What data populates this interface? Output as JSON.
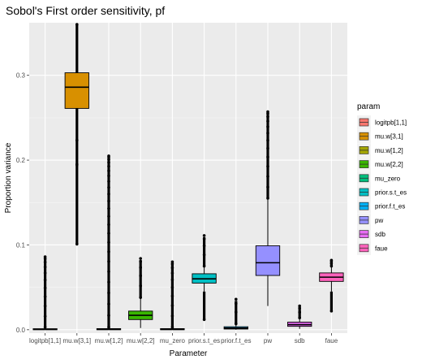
{
  "chart_data": {
    "type": "box",
    "title": "Sobol's First order sensitivity,  pf",
    "xlabel": "Parameter",
    "ylabel": "Proportion variance",
    "ylim": [
      -0.004,
      0.362
    ],
    "yticks": [
      0.0,
      0.1,
      0.2,
      0.3
    ],
    "ytick_labels": [
      "0.0",
      "0.1",
      "0.2",
      "0.3"
    ],
    "grid": true,
    "legend_title": "param",
    "legend_position": "right",
    "categories": [
      "logitpb[1,1]",
      "mu.w[3,1]",
      "mu.w[1,2]",
      "mu.w[2,2]",
      "mu_zero",
      "prior.s.t_es",
      "prior.f.t_es",
      "pw",
      "sdb",
      "faue"
    ],
    "tick_labels": [
      "logitpb[1,1]",
      "mu.w[3,1]",
      "mu.w[1,2]",
      "mu.w[2,2]",
      "mu_zero",
      "prior.s.t_es",
      "prior.f.t_es",
      "pw",
      "sdb",
      "faue"
    ],
    "series": [
      {
        "name": "logitpb[1,1]",
        "color": "#F8766D",
        "min": 0.0,
        "q1": 0.0,
        "median": 0.0005,
        "q3": 0.0012,
        "max": 0.003,
        "outlier_max": 0.086
      },
      {
        "name": "mu.w[3,1]",
        "color": "#D89000",
        "min": 0.195,
        "q1": 0.261,
        "median": 0.286,
        "q3": 0.303,
        "max": 0.36,
        "outlier_min": 0.101,
        "outlier_max": 0.195
      },
      {
        "name": "mu.w[1,2]",
        "color": "#A3A500",
        "min": 0.0,
        "q1": 0.0,
        "median": 0.0005,
        "q3": 0.0013,
        "max": 0.003,
        "outlier_max": 0.205
      },
      {
        "name": "mu.w[2,2]",
        "color": "#39B600",
        "min": 0.002,
        "q1": 0.012,
        "median": 0.017,
        "q3": 0.022,
        "max": 0.038,
        "outlier_max": 0.084
      },
      {
        "name": "mu_zero",
        "color": "#00BF7D",
        "min": 0.0,
        "q1": 0.0,
        "median": 0.0005,
        "q3": 0.0013,
        "max": 0.003,
        "outlier_max": 0.08
      },
      {
        "name": "prior.s.t_es",
        "color": "#00BFC4",
        "min": 0.045,
        "q1": 0.055,
        "median": 0.06,
        "q3": 0.066,
        "max": 0.075,
        "outlier_min": 0.012,
        "outlier_max": 0.111
      },
      {
        "name": "prior.f.t_es",
        "color": "#00B0F6",
        "min": 0.0,
        "q1": 0.0008,
        "median": 0.002,
        "q3": 0.0035,
        "max": 0.007,
        "outlier_max": 0.036
      },
      {
        "name": "pw",
        "color": "#9590FF",
        "min": 0.028,
        "q1": 0.064,
        "median": 0.079,
        "q3": 0.099,
        "max": 0.155,
        "outlier_max": 0.257
      },
      {
        "name": "sdb",
        "color": "#E76BF3",
        "min": 0.001,
        "q1": 0.004,
        "median": 0.006,
        "q3": 0.009,
        "max": 0.014,
        "outlier_max": 0.028
      },
      {
        "name": "faue",
        "color": "#FF62BC",
        "min": 0.045,
        "q1": 0.057,
        "median": 0.062,
        "q3": 0.067,
        "max": 0.075,
        "outlier_min": 0.022,
        "outlier_max": 0.082
      }
    ]
  }
}
